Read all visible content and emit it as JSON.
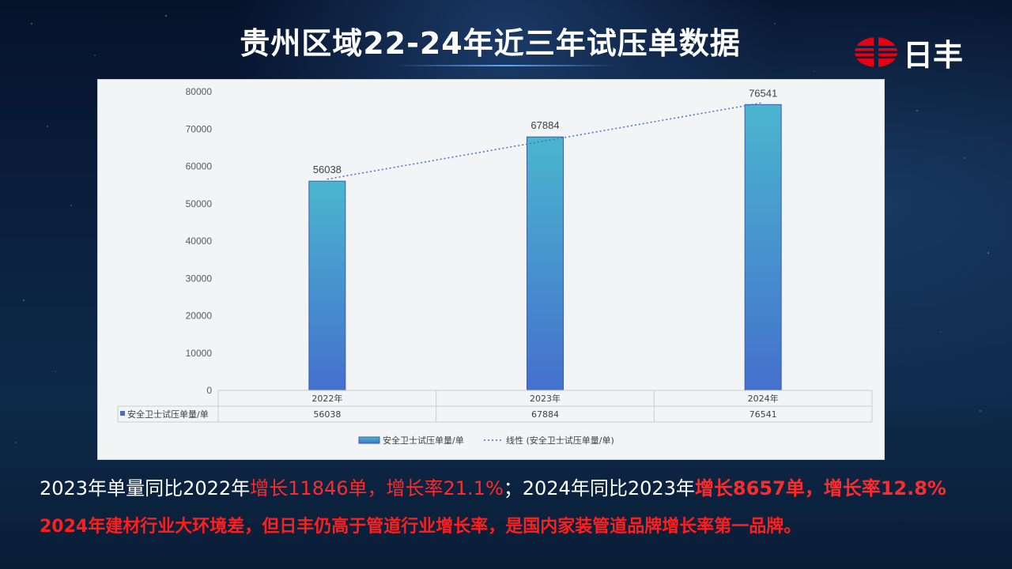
{
  "slide": {
    "title": "贵州区域22-24年近三年试压单数据",
    "logo_text": "日丰"
  },
  "chart_data": {
    "type": "bar",
    "categories": [
      "2022年",
      "2023年",
      "2024年"
    ],
    "series": [
      {
        "name": "安全卫士试压单量/单",
        "values": [
          56038,
          67884,
          76541
        ]
      }
    ],
    "trendline": {
      "name": "线性 (安全卫士试压单量/单)",
      "type": "linear"
    },
    "ylim": [
      0,
      80000
    ],
    "yticks": [
      0,
      10000,
      20000,
      30000,
      40000,
      50000,
      60000,
      70000,
      80000
    ],
    "data_labels": [
      "56038",
      "67884",
      "76541"
    ],
    "data_table": {
      "row_label": "安全卫士试压单量/单",
      "values": [
        "56038",
        "67884",
        "76541"
      ]
    },
    "legend": {
      "position": "bottom",
      "items": [
        "安全卫士试压单量/单",
        "线性 (安全卫士试压单量/单)"
      ]
    },
    "bar_gradient": [
      "#4ab6cf",
      "#4470cc"
    ],
    "trend_color": "#4472c4"
  },
  "summary": {
    "part1": "2023年单量同比2022年",
    "part2": "增长11846单，增长率21.1%",
    "part3": "；2024年同比2023年",
    "part4": "增长8657单，增长率12.8%"
  },
  "conclusion": "2024年建材行业大环境差，但日丰仍高于管道行业增长率，是国内家装管道品牌增长率第一品牌。",
  "colors": {
    "highlight_red": "#ff2a2a",
    "background_dark": "#0b2040"
  }
}
